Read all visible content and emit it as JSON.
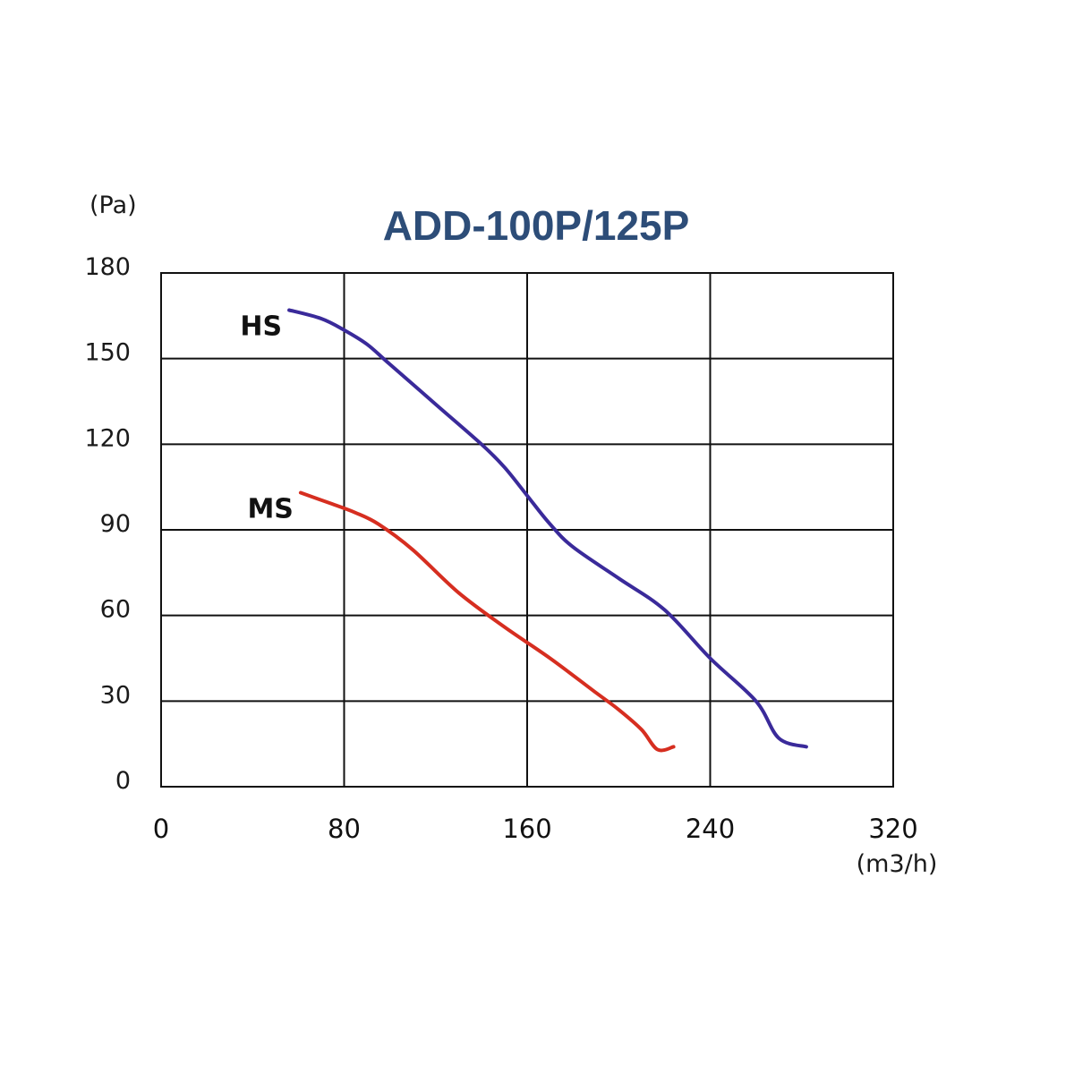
{
  "chart_data": {
    "type": "line",
    "title": "ADD-100P/125P",
    "ylabel": "(Pa)",
    "xlabel": "(m3/h)",
    "xlim": [
      0,
      320
    ],
    "ylim": [
      0,
      180
    ],
    "xticks": [
      0,
      80,
      160,
      240,
      320
    ],
    "yticks": [
      0,
      30,
      60,
      90,
      120,
      150,
      180
    ],
    "xtick_labels": [
      "0",
      "80",
      "160",
      "240",
      "320"
    ],
    "ytick_labels": [
      "0",
      "30",
      "60",
      "90",
      "120",
      "150",
      "180"
    ],
    "grid": true,
    "series": [
      {
        "name": "HS",
        "color": "#3a2a9a",
        "points": [
          [
            56,
            167
          ],
          [
            70,
            164
          ],
          [
            80,
            160
          ],
          [
            90,
            155
          ],
          [
            100,
            148
          ],
          [
            120,
            134
          ],
          [
            140,
            120
          ],
          [
            150,
            112
          ],
          [
            160,
            102
          ],
          [
            170,
            92
          ],
          [
            180,
            84
          ],
          [
            200,
            73
          ],
          [
            220,
            62
          ],
          [
            240,
            45
          ],
          [
            260,
            30
          ],
          [
            270,
            17
          ],
          [
            282,
            14
          ]
        ]
      },
      {
        "name": "MS",
        "color": "#d62e20",
        "points": [
          [
            61,
            103
          ],
          [
            75,
            99
          ],
          [
            85,
            96
          ],
          [
            95,
            92
          ],
          [
            110,
            83
          ],
          [
            130,
            68
          ],
          [
            150,
            56
          ],
          [
            170,
            45
          ],
          [
            190,
            33
          ],
          [
            200,
            27
          ],
          [
            210,
            20
          ],
          [
            217,
            13
          ],
          [
            224,
            14
          ]
        ]
      }
    ]
  }
}
